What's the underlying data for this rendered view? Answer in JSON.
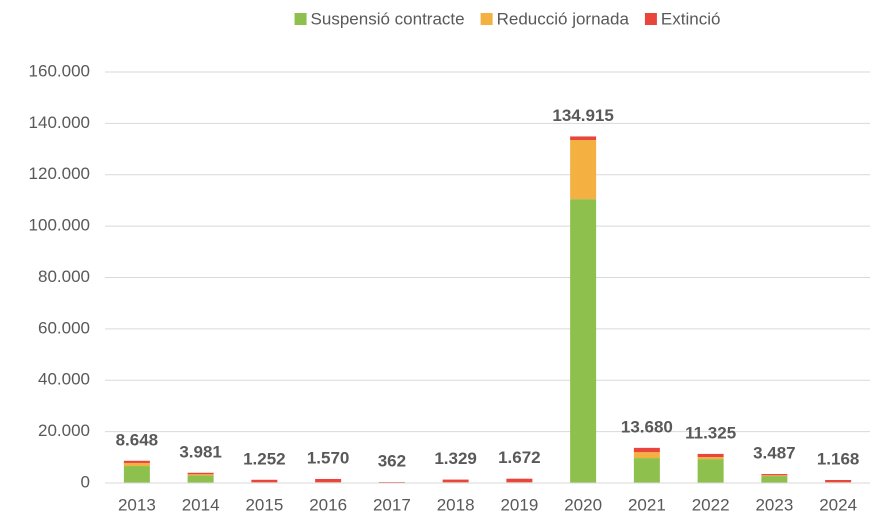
{
  "chart_data": {
    "type": "stacked_bar",
    "categories": [
      "2013",
      "2014",
      "2015",
      "2016",
      "2017",
      "2018",
      "2019",
      "2020",
      "2021",
      "2022",
      "2023",
      "2024"
    ],
    "series": [
      {
        "name": "Suspensió contracte",
        "color": "#8dc04d",
        "values": [
          6600,
          2900,
          200,
          200,
          100,
          200,
          200,
          110500,
          9700,
          9300,
          2700,
          200
        ]
      },
      {
        "name": "Reducció jornada",
        "color": "#f4b142",
        "values": [
          1200,
          500,
          100,
          100,
          50,
          100,
          100,
          23000,
          2300,
          800,
          300,
          100
        ]
      },
      {
        "name": "Extinció",
        "color": "#e8463c",
        "values": [
          848,
          581,
          952,
          1270,
          212,
          1029,
          1372,
          1415,
          1680,
          1225,
          487,
          868
        ]
      }
    ],
    "totals": {
      "values": [
        8648,
        3981,
        1252,
        1570,
        362,
        1329,
        1672,
        134915,
        13680,
        11325,
        3487,
        1168
      ],
      "value_labels": [
        "8.648",
        "3.981",
        "1.252",
        "1.570",
        "362",
        "1.329",
        "1.672",
        "134.915",
        "13.680",
        "11.325",
        "3.487",
        "1.168"
      ]
    },
    "ylim": [
      0,
      160000
    ],
    "yticks": [
      0,
      {
        "value": 20000,
        "label": "20.000"
      },
      {
        "value": 40000,
        "label": "40.000"
      },
      {
        "value": 60000,
        "label": "60.000"
      },
      {
        "value": 80000,
        "label": "80.000"
      },
      {
        "value": 100000,
        "label": "100.000"
      },
      {
        "value": 120000,
        "label": "120.000"
      },
      {
        "value": 140000,
        "label": "140.000"
      },
      {
        "value": 160000,
        "label": "160.000"
      }
    ],
    "grid": true,
    "legend": "top"
  }
}
